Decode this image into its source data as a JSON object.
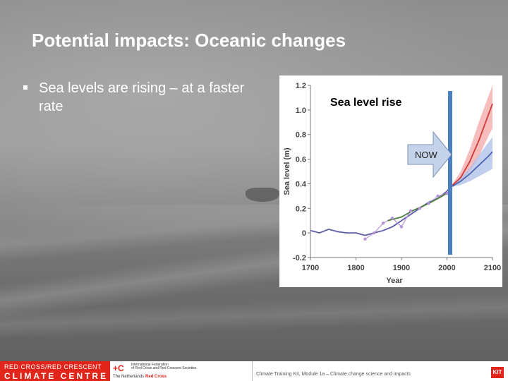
{
  "slide": {
    "title": "Potential impacts: Oceanic changes",
    "bullets": [
      "Sea levels are rising – at a faster rate"
    ]
  },
  "chart_data": {
    "type": "line",
    "title": "Sea level rise",
    "xlabel": "Year",
    "ylabel": "Sea level (m)",
    "xlim": [
      1700,
      2100
    ],
    "ylim": [
      -0.2,
      1.2
    ],
    "x_ticks": [
      "1700",
      "1800",
      "1900",
      "2000",
      "2100"
    ],
    "y_ticks": [
      "-0.2",
      "0",
      "0.2",
      "0.4",
      "0.6",
      "0.8",
      "1.0",
      "1.2"
    ],
    "annotation": "NOW",
    "now_year": 2007,
    "series": [
      {
        "color": "#5b5aa8",
        "x": [
          1700,
          1720,
          1740,
          1760,
          1780,
          1800,
          1820,
          1840,
          1860,
          1880,
          1900,
          1920,
          1940,
          1960,
          1980,
          2000,
          2007
        ],
        "y": [
          0.02,
          0.0,
          0.03,
          0.01,
          0.0,
          0.0,
          -0.02,
          0.0,
          0.02,
          0.05,
          0.1,
          0.15,
          0.2,
          0.25,
          0.28,
          0.34,
          0.37
        ]
      },
      {
        "color": "#b794d4",
        "x": [
          1820,
          1840,
          1860,
          1880,
          1900,
          1920,
          1940,
          1960,
          1980,
          2000
        ],
        "y": [
          -0.05,
          0.0,
          0.08,
          0.12,
          0.05,
          0.18,
          0.2,
          0.24,
          0.3,
          0.32
        ]
      },
      {
        "color": "#4a7f3c",
        "x": [
          1870,
          1900,
          1930,
          1960,
          1990,
          2007
        ],
        "y": [
          0.1,
          0.13,
          0.19,
          0.24,
          0.3,
          0.34
        ]
      },
      {
        "color": "#d03a3a",
        "x": [
          2007,
          2030,
          2050,
          2070,
          2090,
          2100
        ],
        "y": [
          0.37,
          0.45,
          0.58,
          0.75,
          0.95,
          1.05
        ]
      },
      {
        "color": "#4a66b3",
        "x": [
          2007,
          2030,
          2050,
          2070,
          2090,
          2100
        ],
        "y": [
          0.37,
          0.42,
          0.48,
          0.55,
          0.62,
          0.66
        ]
      }
    ],
    "bands": [
      {
        "color": "#f4a6a6",
        "x": [
          2007,
          2030,
          2050,
          2070,
          2090,
          2100
        ],
        "lower": [
          0.37,
          0.42,
          0.5,
          0.62,
          0.78,
          0.85
        ],
        "upper": [
          0.37,
          0.5,
          0.68,
          0.9,
          1.1,
          1.2
        ]
      },
      {
        "color": "#aebde8",
        "x": [
          2007,
          2030,
          2050,
          2070,
          2090,
          2100
        ],
        "lower": [
          0.37,
          0.39,
          0.42,
          0.46,
          0.5,
          0.52
        ],
        "upper": [
          0.37,
          0.45,
          0.53,
          0.63,
          0.73,
          0.78
        ]
      }
    ]
  },
  "footer": {
    "rc_line1": "RED CROSS/RED CRESCENT",
    "rc_line2": "CLIMATE CENTRE",
    "ifrc_lines": [
      "International Federation",
      "of Red Cross and Red Crescent Societies"
    ],
    "nlrc_prefix": "The Netherlands",
    "nlrc_name": "Red Cross",
    "text": "Climate Training Kit, Module 1a – Climate change science and impacts",
    "kit": "KIT"
  },
  "colors": {
    "now_bar": "#4a7fc4",
    "now_arrow": "#c5d3ea",
    "red_cross": "#e1251b"
  }
}
